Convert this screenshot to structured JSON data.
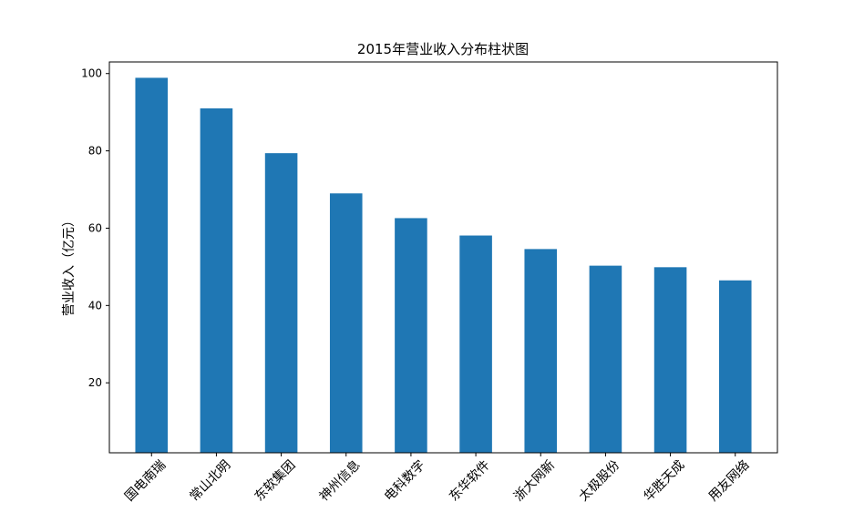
{
  "chart_data": {
    "type": "bar",
    "title": "2015年营业收入分布柱状图",
    "xlabel": "",
    "ylabel": "营业收入（亿元）",
    "categories": [
      "国电南瑞",
      "常山北明",
      "东软集团",
      "神州信息",
      "电科数字",
      "东华软件",
      "浙大网新",
      "太极股份",
      "华胜天成",
      "用友网络"
    ],
    "values": [
      98.9,
      91.0,
      79.4,
      69.0,
      62.6,
      58.1,
      54.6,
      50.3,
      49.9,
      46.5
    ],
    "yticks": [
      "20",
      "40",
      "60",
      "80",
      "100"
    ],
    "ylim": [
      1.9,
      103.0
    ],
    "bar_color": "#1f77b4",
    "grid": false,
    "legend": "none"
  }
}
